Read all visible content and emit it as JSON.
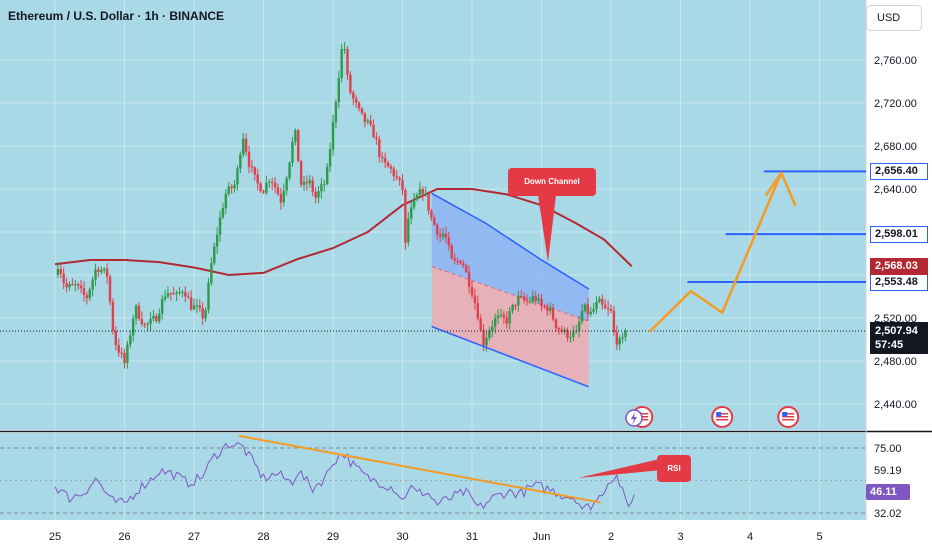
{
  "header": {
    "symbol_title": "Ethereum / U.S. Dollar · 1h · BINANCE",
    "currency_button": "USD"
  },
  "colors": {
    "background": "#ffffff",
    "grid_bg": "#a9d8e6",
    "grid": "#c9e6ef",
    "up_candle": "#2e9a4a",
    "down_candle": "#e0404a",
    "ma_line": "#b22833",
    "channel_upper_fill": "#8fb4f4",
    "channel_lower_fill": "#f1aab0",
    "channel_line": "#2962ff",
    "projection": "#f59b23",
    "rsi_line": "#7e57c2",
    "rsi_trend": "#f59b23",
    "level_line": "#2962ff"
  },
  "chart_data": [
    {
      "type": "candlestick",
      "title": "Ethereum / U.S. Dollar · 1h · BINANCE",
      "y_axis": {
        "unit": "USD",
        "ticks": [
          2440,
          2480,
          2520,
          2560,
          2600,
          2640,
          2680,
          2720,
          2760
        ],
        "tick_labels": [
          "2,440.00",
          "2,480.00",
          "2,520.00",
          "",
          "",
          "2,640.00",
          "2,680.00",
          "2,720.00",
          "2,760.00"
        ],
        "ylim": [
          2418,
          2800
        ]
      },
      "x_axis": {
        "ticks": [
          "25",
          "26",
          "27",
          "28",
          "29",
          "30",
          "31",
          "Jun",
          "2",
          "3",
          "4",
          "5"
        ],
        "tick_days": [
          0,
          1,
          2,
          3,
          4,
          5,
          6,
          7,
          8,
          9,
          10,
          11
        ]
      },
      "series": [
        {
          "role": "price",
          "keypoints": [
            [
              0.0,
              2560
            ],
            [
              0.05,
              2572
            ],
            [
              0.15,
              2548
            ],
            [
              0.3,
              2550
            ],
            [
              0.45,
              2538
            ],
            [
              0.6,
              2568
            ],
            [
              0.75,
              2560
            ],
            [
              0.85,
              2500
            ],
            [
              1.0,
              2478
            ],
            [
              1.05,
              2494
            ],
            [
              1.15,
              2530
            ],
            [
              1.3,
              2512
            ],
            [
              1.45,
              2520
            ],
            [
              1.6,
              2545
            ],
            [
              1.75,
              2540
            ],
            [
              1.85,
              2548
            ],
            [
              1.95,
              2532
            ],
            [
              2.05,
              2528
            ],
            [
              2.15,
              2520
            ],
            [
              2.25,
              2570
            ],
            [
              2.35,
              2605
            ],
            [
              2.45,
              2635
            ],
            [
              2.6,
              2645
            ],
            [
              2.7,
              2692
            ],
            [
              2.8,
              2662
            ],
            [
              2.9,
              2645
            ],
            [
              3.0,
              2640
            ],
            [
              3.1,
              2652
            ],
            [
              3.25,
              2630
            ],
            [
              3.35,
              2658
            ],
            [
              3.45,
              2695
            ],
            [
              3.55,
              2640
            ],
            [
              3.65,
              2648
            ],
            [
              3.75,
              2632
            ],
            [
              3.9,
              2648
            ],
            [
              4.0,
              2700
            ],
            [
              4.08,
              2745
            ],
            [
              4.15,
              2782
            ],
            [
              4.22,
              2735
            ],
            [
              4.3,
              2722
            ],
            [
              4.4,
              2708
            ],
            [
              4.5,
              2700
            ],
            [
              4.6,
              2690
            ],
            [
              4.7,
              2665
            ],
            [
              4.85,
              2657
            ],
            [
              5.0,
              2640
            ],
            [
              5.03,
              2580
            ],
            [
              5.08,
              2612
            ],
            [
              5.2,
              2632
            ],
            [
              5.3,
              2640
            ],
            [
              5.42,
              2612
            ],
            [
              5.55,
              2595
            ],
            [
              5.6,
              2600
            ],
            [
              5.72,
              2570
            ],
            [
              5.85,
              2575
            ],
            [
              6.0,
              2545
            ],
            [
              6.1,
              2520
            ],
            [
              6.15,
              2495
            ],
            [
              6.25,
              2510
            ],
            [
              6.35,
              2520
            ],
            [
              6.5,
              2518
            ],
            [
              6.65,
              2538
            ],
            [
              6.8,
              2535
            ],
            [
              6.9,
              2540
            ],
            [
              7.0,
              2530
            ],
            [
              7.1,
              2530
            ],
            [
              7.22,
              2512
            ],
            [
              7.35,
              2505
            ],
            [
              7.5,
              2505
            ],
            [
              7.6,
              2530
            ],
            [
              7.7,
              2523
            ],
            [
              7.82,
              2535
            ],
            [
              7.9,
              2528
            ],
            [
              8.0,
              2525
            ],
            [
              8.05,
              2502
            ],
            [
              8.15,
              2495
            ],
            [
              8.22,
              2507.94
            ]
          ],
          "last_value": 2507.94,
          "last_time_label": "57:45"
        },
        {
          "role": "moving_average",
          "keypoints": [
            [
              0.0,
              2570
            ],
            [
              0.5,
              2574
            ],
            [
              1.0,
              2574
            ],
            [
              1.5,
              2572
            ],
            [
              2.0,
              2567
            ],
            [
              2.5,
              2560
            ],
            [
              3.0,
              2562
            ],
            [
              3.5,
              2575
            ],
            [
              4.0,
              2585
            ],
            [
              4.5,
              2600
            ],
            [
              5.0,
              2625
            ],
            [
              5.5,
              2640
            ],
            [
              6.0,
              2640
            ],
            [
              6.5,
              2635
            ],
            [
              7.0,
              2625
            ],
            [
              7.5,
              2608
            ],
            [
              7.9,
              2593
            ],
            [
              8.3,
              2568
            ]
          ],
          "last_value": 2568.03
        }
      ],
      "annotations": {
        "channel": {
          "label": "Down Channel",
          "upper": [
            [
              5.42,
              2636
            ],
            [
              6.2,
              2608
            ],
            [
              7.0,
              2574
            ],
            [
              7.68,
              2547
            ]
          ],
          "mid": [
            [
              5.42,
              2568
            ],
            [
              7.68,
              2517
            ]
          ],
          "lower": [
            [
              5.42,
              2512
            ],
            [
              7.68,
              2456
            ]
          ]
        },
        "projection": [
          [
            8.55,
            2507
          ],
          [
            9.15,
            2545
          ],
          [
            9.6,
            2525
          ],
          [
            10.45,
            2655
          ],
          [
            10.65,
            2625
          ]
        ],
        "levels": [
          {
            "value": 2656.4,
            "label": "2,656.40",
            "from_day": 10.2
          },
          {
            "value": 2598.01,
            "label": "2,598.01",
            "from_day": 9.65
          },
          {
            "value": 2553.48,
            "label": "2,553.48",
            "from_day": 9.1
          }
        ],
        "event_icons_days": [
          8.45,
          9.6,
          10.55
        ]
      }
    },
    {
      "type": "line",
      "series": [
        {
          "name": "RSI",
          "keypoints": [
            [
              0.0,
              50
            ],
            [
              0.2,
              42
            ],
            [
              0.4,
              45
            ],
            [
              0.6,
              55
            ],
            [
              0.8,
              40
            ],
            [
              1.0,
              38
            ],
            [
              1.2,
              48
            ],
            [
              1.4,
              55
            ],
            [
              1.5,
              60
            ],
            [
              1.7,
              58
            ],
            [
              1.9,
              52
            ],
            [
              2.1,
              55
            ],
            [
              2.3,
              70
            ],
            [
              2.5,
              78
            ],
            [
              2.7,
              76
            ],
            [
              2.9,
              62
            ],
            [
              3.0,
              55
            ],
            [
              3.2,
              58
            ],
            [
              3.4,
              52
            ],
            [
              3.5,
              60
            ],
            [
              3.7,
              48
            ],
            [
              3.9,
              56
            ],
            [
              4.0,
              66
            ],
            [
              4.15,
              72
            ],
            [
              4.3,
              63
            ],
            [
              4.5,
              55
            ],
            [
              4.7,
              52
            ],
            [
              4.9,
              48
            ],
            [
              5.0,
              40
            ],
            [
              5.1,
              50
            ],
            [
              5.2,
              45
            ],
            [
              5.35,
              46
            ],
            [
              5.5,
              38
            ],
            [
              5.7,
              42
            ],
            [
              5.9,
              46
            ],
            [
              6.1,
              35
            ],
            [
              6.3,
              42
            ],
            [
              6.5,
              46
            ],
            [
              6.7,
              45
            ],
            [
              6.9,
              50
            ],
            [
              7.1,
              48
            ],
            [
              7.3,
              44
            ],
            [
              7.5,
              42
            ],
            [
              7.6,
              34
            ],
            [
              7.8,
              40
            ],
            [
              7.9,
              48
            ],
            [
              8.0,
              55
            ],
            [
              8.1,
              56
            ],
            [
              8.2,
              40
            ],
            [
              8.25,
              36
            ],
            [
              8.3,
              42
            ],
            [
              8.35,
              46
            ]
          ],
          "trendline": [
            [
              2.65,
              83
            ],
            [
              7.85,
              39
            ]
          ],
          "last_value": 46.11
        }
      ],
      "y_axis": {
        "tick_labels": [
          "75.00",
          "59.19",
          "32.02"
        ],
        "ticks": [
          75,
          59.19,
          32.02
        ],
        "ylim": [
          24,
          90
        ]
      },
      "callout": "RSI",
      "last_label": "46.11"
    }
  ]
}
